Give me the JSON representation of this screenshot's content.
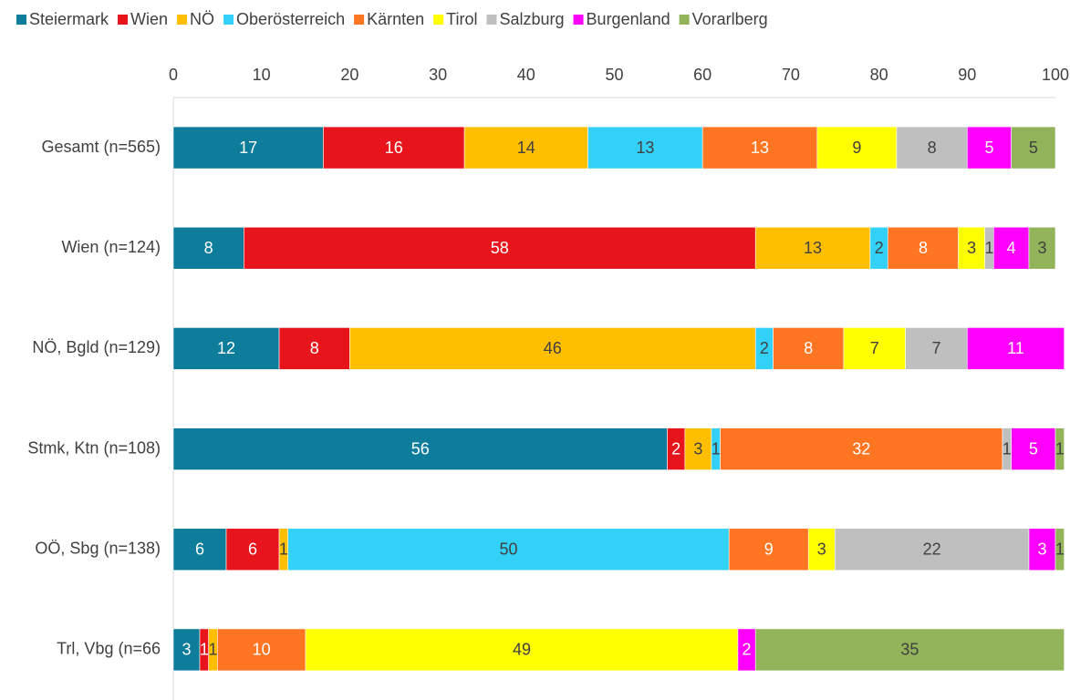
{
  "chart_data": {
    "type": "stacked-barh",
    "categories": [
      "Gesamt (n=565)",
      "Wien (n=124)",
      "NÖ, Bgld (n=129)",
      "Stmk, Ktn (n=108)",
      "OÖ, Sbg (n=138)",
      "Trl, Vbg (n=66"
    ],
    "series": [
      {
        "name": "Steiermark",
        "color": "#0e7c9b",
        "values": [
          17,
          8,
          12,
          56,
          6,
          3
        ]
      },
      {
        "name": "Wien",
        "color": "#e8141c",
        "values": [
          16,
          58,
          8,
          2,
          6,
          1
        ]
      },
      {
        "name": "NÖ",
        "color": "#ffbf00",
        "values": [
          14,
          13,
          46,
          3,
          1,
          1
        ]
      },
      {
        "name": "Oberösterreich",
        "color": "#33d1f7",
        "values": [
          13,
          2,
          2,
          1,
          50,
          null
        ]
      },
      {
        "name": "Kärnten",
        "color": "#ff7522",
        "values": [
          13,
          8,
          8,
          32,
          9,
          10
        ]
      },
      {
        "name": "Tirol",
        "color": "#ffff00",
        "values": [
          9,
          3,
          7,
          null,
          3,
          49
        ]
      },
      {
        "name": "Salzburg",
        "color": "#bfbfbf",
        "values": [
          8,
          1,
          7,
          1,
          22,
          null
        ]
      },
      {
        "name": "Burgenland",
        "color": "#ff00ff",
        "values": [
          5,
          4,
          11,
          5,
          3,
          2
        ]
      },
      {
        "name": "Vorarlberg",
        "color": "#92b35a",
        "values": [
          5,
          3,
          null,
          1,
          1,
          35
        ]
      }
    ],
    "xlim": [
      0,
      100
    ],
    "xticks": [
      0,
      10,
      20,
      30,
      40,
      50,
      60,
      70,
      80,
      90,
      100
    ],
    "legend": "top"
  }
}
